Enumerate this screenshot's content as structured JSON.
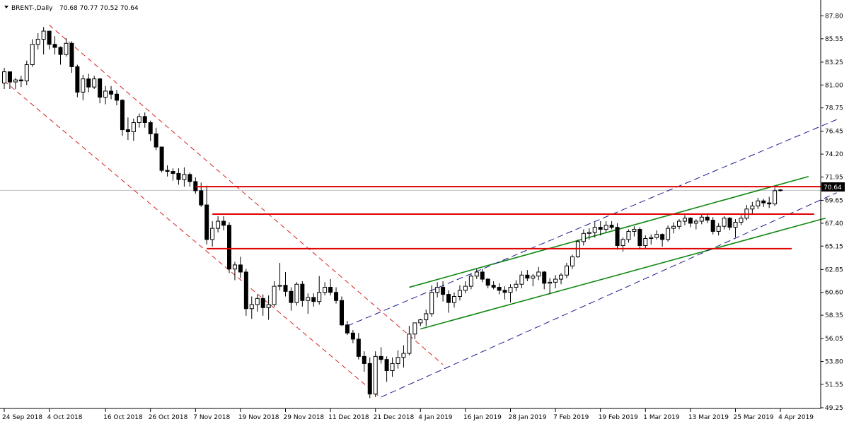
{
  "header": {
    "symbol": "BRENT-,Daily",
    "ohlc": "70.68 70.77 70.52 70.64"
  },
  "colors": {
    "bull_fill": "#ffffff",
    "bear_fill": "#000000",
    "candle_line": "#000000",
    "resistance": "#e00000",
    "channel_green": "#118811",
    "channel_blue_dash": "#1a1a8c",
    "channel_red_dash": "#d42020",
    "price_line": "#c0c0c0"
  },
  "chart_data": {
    "type": "candlestick",
    "title": "BRENT-,Daily",
    "ylim": [
      49.25,
      88.25
    ],
    "y_ticks": [
      "87.80",
      "85.55",
      "83.25",
      "81.00",
      "78.75",
      "76.45",
      "74.20",
      "71.95",
      "69.65",
      "67.40",
      "65.15",
      "62.85",
      "60.60",
      "58.35",
      "56.05",
      "53.80",
      "51.55",
      "49.25"
    ],
    "x_ticks": [
      {
        "label": "24 Sep 2018",
        "index": 0
      },
      {
        "label": "4 Oct 2018",
        "index": 8
      },
      {
        "label": "16 Oct 2018",
        "index": 18
      },
      {
        "label": "26 Oct 2018",
        "index": 26
      },
      {
        "label": "7 Nov 2018",
        "index": 34
      },
      {
        "label": "19 Nov 2018",
        "index": 42
      },
      {
        "label": "29 Nov 2018",
        "index": 50
      },
      {
        "label": "11 Dec 2018",
        "index": 58
      },
      {
        "label": "21 Dec 2018",
        "index": 66
      },
      {
        "label": "4 Jan 2019",
        "index": 74
      },
      {
        "label": "16 Jan 2019",
        "index": 82
      },
      {
        "label": "28 Jan 2019",
        "index": 90
      },
      {
        "label": "7 Feb 2019",
        "index": 98
      },
      {
        "label": "19 Feb 2019",
        "index": 106
      },
      {
        "label": "1 Mar 2019",
        "index": 114
      },
      {
        "label": "13 Mar 2019",
        "index": 122
      },
      {
        "label": "25 Mar 2019",
        "index": 130
      },
      {
        "label": "4 Apr 2019",
        "index": 138
      }
    ],
    "current_price": "70.64",
    "candles": [
      [
        81.2,
        82.7,
        80.6,
        82.3
      ],
      [
        82.3,
        82.0,
        80.6,
        81.3
      ],
      [
        81.3,
        81.7,
        80.6,
        81.5
      ],
      [
        81.5,
        81.9,
        80.8,
        81.4
      ],
      [
        81.4,
        83.4,
        81.0,
        83.0
      ],
      [
        83.0,
        85.5,
        82.8,
        85.0
      ],
      [
        85.0,
        86.1,
        84.5,
        85.5
      ],
      [
        85.5,
        86.7,
        84.0,
        86.3
      ],
      [
        86.3,
        86.2,
        84.5,
        85.0
      ],
      [
        85.0,
        85.8,
        84.0,
        84.7
      ],
      [
        84.7,
        84.8,
        83.0,
        84.0
      ],
      [
        84.0,
        85.6,
        83.8,
        85.1
      ],
      [
        85.1,
        85.3,
        82.2,
        82.8
      ],
      [
        82.8,
        83.0,
        79.8,
        80.3
      ],
      [
        80.3,
        82.0,
        79.5,
        81.6
      ],
      [
        81.6,
        82.1,
        80.3,
        80.8
      ],
      [
        80.8,
        81.9,
        80.6,
        81.6
      ],
      [
        81.6,
        81.7,
        79.2,
        79.8
      ],
      [
        79.8,
        80.9,
        79.1,
        80.4
      ],
      [
        80.4,
        80.9,
        79.6,
        80.1
      ],
      [
        80.1,
        80.5,
        79.0,
        79.5
      ],
      [
        79.5,
        79.6,
        76.0,
        76.6
      ],
      [
        76.6,
        77.8,
        75.6,
        76.4
      ],
      [
        76.4,
        77.7,
        75.5,
        77.3
      ],
      [
        77.3,
        78.2,
        76.8,
        77.9
      ],
      [
        77.9,
        78.3,
        76.8,
        77.3
      ],
      [
        77.3,
        77.5,
        75.5,
        76.2
      ],
      [
        76.2,
        76.8,
        74.6,
        74.9
      ],
      [
        74.9,
        74.9,
        72.4,
        72.6
      ],
      [
        72.6,
        73.1,
        72.0,
        72.5
      ],
      [
        72.5,
        72.8,
        71.6,
        72.3
      ],
      [
        72.3,
        72.8,
        71.2,
        71.7
      ],
      [
        71.7,
        72.9,
        71.0,
        72.2
      ],
      [
        72.2,
        72.4,
        71.0,
        71.5
      ],
      [
        71.5,
        71.9,
        70.3,
        70.6
      ],
      [
        70.6,
        71.4,
        69.0,
        69.2
      ],
      [
        69.2,
        71.1,
        65.3,
        65.8
      ],
      [
        65.8,
        67.6,
        65.1,
        66.9
      ],
      [
        66.9,
        68.1,
        66.5,
        67.6
      ],
      [
        67.6,
        68.1,
        66.7,
        67.2
      ],
      [
        67.2,
        67.5,
        62.5,
        62.9
      ],
      [
        62.9,
        63.6,
        61.8,
        63.3
      ],
      [
        63.3,
        64.1,
        62.0,
        62.6
      ],
      [
        62.6,
        62.9,
        58.3,
        59.0
      ],
      [
        59.0,
        60.2,
        58.0,
        59.4
      ],
      [
        59.4,
        60.4,
        58.7,
        60.0
      ],
      [
        60.0,
        60.4,
        58.3,
        59.1
      ],
      [
        59.1,
        60.3,
        57.9,
        59.4
      ],
      [
        59.4,
        61.7,
        59.2,
        61.2
      ],
      [
        61.2,
        63.5,
        60.8,
        61.3
      ],
      [
        61.3,
        62.6,
        60.2,
        60.7
      ],
      [
        60.7,
        61.1,
        58.8,
        59.6
      ],
      [
        59.6,
        61.6,
        59.3,
        61.4
      ],
      [
        61.4,
        61.7,
        59.2,
        59.8
      ],
      [
        59.8,
        60.5,
        58.5,
        60.1
      ],
      [
        60.1,
        60.5,
        59.2,
        59.7
      ],
      [
        59.7,
        62.2,
        59.4,
        60.6
      ],
      [
        60.6,
        61.6,
        60.3,
        61.1
      ],
      [
        61.1,
        61.9,
        60.3,
        60.6
      ],
      [
        60.6,
        61.1,
        59.5,
        59.8
      ],
      [
        59.8,
        60.2,
        57.3,
        57.4
      ],
      [
        57.4,
        57.8,
        56.4,
        56.6
      ],
      [
        56.6,
        56.9,
        55.6,
        56.0
      ],
      [
        56.0,
        56.6,
        54.0,
        54.3
      ],
      [
        54.3,
        54.8,
        52.8,
        53.6
      ],
      [
        53.6,
        54.2,
        50.2,
        50.6
      ],
      [
        50.6,
        54.8,
        50.3,
        54.3
      ],
      [
        54.3,
        55.2,
        53.6,
        54.0
      ],
      [
        54.0,
        54.3,
        51.8,
        52.9
      ],
      [
        52.9,
        54.2,
        52.3,
        53.6
      ],
      [
        53.6,
        54.9,
        53.1,
        54.2
      ],
      [
        54.2,
        55.4,
        53.2,
        54.6
      ],
      [
        54.6,
        57.3,
        54.4,
        56.5
      ],
      [
        56.5,
        57.6,
        56.0,
        57.6
      ],
      [
        57.6,
        58.0,
        57.3,
        57.9
      ],
      [
        57.9,
        58.9,
        57.3,
        58.5
      ],
      [
        58.5,
        61.3,
        58.2,
        60.6
      ],
      [
        60.6,
        61.6,
        60.1,
        61.1
      ],
      [
        61.1,
        61.7,
        59.7,
        60.4
      ],
      [
        60.4,
        60.8,
        58.6,
        59.6
      ],
      [
        59.6,
        60.6,
        59.1,
        60.2
      ],
      [
        60.2,
        61.3,
        59.8,
        60.8
      ],
      [
        60.8,
        61.7,
        60.5,
        61.2
      ],
      [
        61.2,
        62.4,
        60.9,
        62.2
      ],
      [
        62.2,
        62.9,
        61.9,
        62.6
      ],
      [
        62.6,
        62.9,
        61.6,
        61.9
      ],
      [
        61.9,
        62.0,
        61.0,
        61.3
      ],
      [
        61.3,
        61.7,
        60.9,
        61.1
      ],
      [
        61.1,
        61.5,
        60.4,
        60.8
      ],
      [
        60.8,
        61.2,
        59.9,
        60.6
      ],
      [
        60.6,
        61.4,
        59.6,
        61.1
      ],
      [
        61.1,
        61.8,
        60.7,
        61.4
      ],
      [
        61.4,
        62.7,
        61.0,
        62.3
      ],
      [
        62.3,
        62.8,
        61.7,
        62.0
      ],
      [
        62.0,
        62.4,
        61.2,
        62.2
      ],
      [
        62.2,
        63.1,
        61.8,
        62.6
      ],
      [
        62.6,
        62.7,
        60.9,
        61.5
      ],
      [
        61.5,
        62.0,
        60.4,
        61.6
      ],
      [
        61.6,
        62.3,
        61.0,
        61.9
      ],
      [
        61.9,
        62.5,
        61.4,
        62.3
      ],
      [
        62.3,
        63.5,
        62.0,
        63.2
      ],
      [
        63.2,
        64.3,
        62.9,
        64.1
      ],
      [
        64.1,
        65.8,
        64.0,
        65.6
      ],
      [
        65.6,
        66.8,
        65.2,
        66.4
      ],
      [
        66.4,
        66.9,
        65.8,
        66.5
      ],
      [
        66.5,
        67.5,
        66.0,
        67.0
      ],
      [
        67.0,
        67.6,
        66.2,
        66.8
      ],
      [
        66.8,
        67.6,
        66.5,
        67.2
      ],
      [
        67.2,
        67.6,
        66.8,
        67.0
      ],
      [
        67.0,
        67.4,
        64.8,
        65.2
      ],
      [
        65.2,
        66.0,
        64.6,
        65.8
      ],
      [
        65.8,
        66.8,
        65.5,
        66.6
      ],
      [
        66.6,
        67.1,
        66.1,
        66.8
      ],
      [
        66.8,
        67.0,
        64.8,
        65.2
      ],
      [
        65.2,
        66.2,
        64.9,
        65.9
      ],
      [
        65.9,
        66.3,
        65.3,
        66.0
      ],
      [
        66.0,
        66.7,
        65.8,
        66.3
      ],
      [
        66.3,
        66.4,
        65.1,
        65.8
      ],
      [
        65.8,
        67.2,
        65.6,
        66.9
      ],
      [
        66.9,
        67.5,
        66.4,
        67.1
      ],
      [
        67.1,
        67.8,
        66.8,
        67.6
      ],
      [
        67.6,
        68.2,
        67.2,
        67.9
      ],
      [
        67.9,
        68.0,
        67.0,
        67.4
      ],
      [
        67.4,
        67.8,
        66.8,
        67.6
      ],
      [
        67.6,
        68.3,
        67.3,
        68.0
      ],
      [
        68.0,
        68.4,
        67.4,
        67.7
      ],
      [
        67.7,
        68.0,
        66.3,
        66.6
      ],
      [
        66.6,
        67.4,
        66.2,
        67.1
      ],
      [
        67.1,
        68.1,
        66.8,
        67.9
      ],
      [
        67.9,
        68.0,
        66.7,
        67.0
      ],
      [
        67.0,
        67.8,
        66.0,
        67.5
      ],
      [
        67.5,
        68.2,
        67.2,
        67.9
      ],
      [
        67.9,
        69.2,
        67.7,
        68.8
      ],
      [
        68.8,
        69.5,
        68.3,
        69.1
      ],
      [
        69.1,
        69.9,
        68.8,
        69.6
      ],
      [
        69.6,
        69.8,
        69.0,
        69.4
      ],
      [
        69.4,
        70.0,
        68.9,
        69.3
      ],
      [
        69.3,
        70.9,
        69.1,
        70.6
      ],
      [
        70.68,
        70.77,
        70.52,
        70.64
      ]
    ],
    "horizontal_levels": [
      {
        "price": 71.0,
        "from": 34,
        "to": 146
      },
      {
        "price": 68.3,
        "from": 37,
        "to": 144
      },
      {
        "price": 64.9,
        "from": 36,
        "to": 140
      }
    ],
    "trend_lines": [
      {
        "style": "green",
        "from": [
          74,
          57.0
        ],
        "to": [
          146,
          67.9
        ]
      },
      {
        "style": "green",
        "from": [
          72,
          61.1
        ],
        "to": [
          143,
          72.0
        ]
      },
      {
        "style": "blue-dash",
        "from": [
          67,
          50.3
        ],
        "to": [
          148,
          70.4
        ]
      },
      {
        "style": "blue-dash",
        "from": [
          61,
          57.3
        ],
        "to": [
          148,
          77.6
        ]
      },
      {
        "style": "red-dash",
        "from": [
          0,
          81.4
        ],
        "to": [
          67,
          50.2
        ]
      },
      {
        "style": "red-dash",
        "from": [
          8,
          86.9
        ],
        "to": [
          78,
          53.5
        ]
      }
    ]
  }
}
